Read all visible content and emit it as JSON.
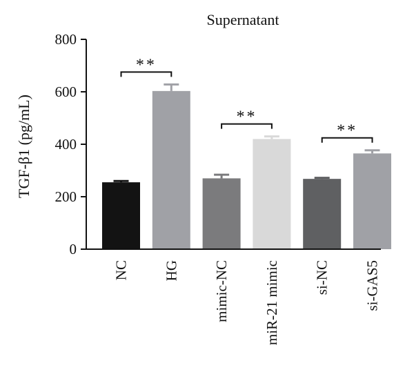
{
  "chart_data": {
    "type": "bar",
    "title": "Supernatant",
    "ylabel": "TGF-β1 (pg/mL)",
    "xlabel": "",
    "ylim": [
      0,
      800
    ],
    "yticks": [
      0,
      200,
      400,
      600,
      800
    ],
    "ytick_labels": [
      "0",
      "200",
      "400",
      "600",
      "800"
    ],
    "grid": false,
    "categories": [
      "NC",
      "HG",
      "mimic-NC",
      "miR-21 mimic",
      "si-NC",
      "si-GAS5"
    ],
    "values": [
      255,
      603,
      270,
      420,
      268,
      365
    ],
    "errors": [
      5,
      25,
      14,
      10,
      4,
      12
    ],
    "colors": [
      "#131313",
      "#a0a1a6",
      "#7b7b7d",
      "#d9d9d9",
      "#5f6062",
      "#a0a1a6"
    ],
    "significance": [
      {
        "from": 0,
        "to": 1,
        "label": "**"
      },
      {
        "from": 2,
        "to": 3,
        "label": "**"
      },
      {
        "from": 4,
        "to": 5,
        "label": "**"
      }
    ]
  }
}
